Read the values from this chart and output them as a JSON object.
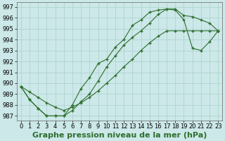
{
  "series1_x": [
    0,
    1,
    2,
    3,
    4,
    5,
    6,
    7,
    8,
    9,
    10,
    11,
    12,
    13,
    14,
    15,
    16,
    17,
    18,
    19,
    20,
    21,
    22,
    23
  ],
  "series1_y": [
    989.7,
    988.5,
    987.7,
    987.0,
    987.0,
    987.0,
    988.0,
    989.5,
    990.5,
    991.8,
    992.2,
    993.3,
    994.0,
    995.3,
    995.8,
    996.5,
    996.7,
    996.8,
    996.8,
    996.2,
    996.1,
    995.8,
    995.5,
    994.8
  ],
  "series2_x": [
    0,
    1,
    2,
    3,
    4,
    5,
    6,
    7,
    8,
    9,
    10,
    11,
    12,
    13,
    14,
    15,
    16,
    17,
    18,
    19,
    20,
    21,
    22,
    23
  ],
  "series2_y": [
    989.7,
    988.5,
    987.7,
    987.0,
    987.0,
    987.0,
    987.5,
    988.3,
    989.0,
    990.2,
    991.5,
    992.5,
    993.5,
    994.2,
    994.8,
    995.5,
    996.3,
    996.8,
    996.7,
    995.8,
    993.2,
    993.0,
    993.8,
    994.8
  ],
  "series3_x": [
    0,
    1,
    2,
    3,
    4,
    5,
    6,
    7,
    8,
    9,
    10,
    11,
    12,
    13,
    14,
    15,
    16,
    17,
    18,
    19,
    20,
    21,
    22,
    23
  ],
  "series3_y": [
    989.7,
    989.2,
    988.7,
    988.2,
    987.8,
    987.5,
    987.8,
    988.2,
    988.7,
    989.3,
    990.0,
    990.7,
    991.5,
    992.2,
    993.0,
    993.7,
    994.3,
    994.8,
    994.8,
    994.8,
    994.8,
    994.8,
    994.8,
    994.8
  ],
  "line_color": "#2d6e2d",
  "bg_color": "#cce8e8",
  "grid_color": "#aacfcf",
  "title": "Graphe pression niveau de la mer (hPa)",
  "xlim_min": -0.5,
  "xlim_max": 23.5,
  "ylim_min": 986.6,
  "ylim_max": 997.4,
  "yticks": [
    987,
    988,
    989,
    990,
    991,
    992,
    993,
    994,
    995,
    996,
    997
  ],
  "xticks": [
    0,
    1,
    2,
    3,
    4,
    5,
    6,
    7,
    8,
    9,
    10,
    11,
    12,
    13,
    14,
    15,
    16,
    17,
    18,
    19,
    20,
    21,
    22,
    23
  ],
  "title_fontsize": 8,
  "tick_fontsize": 6
}
